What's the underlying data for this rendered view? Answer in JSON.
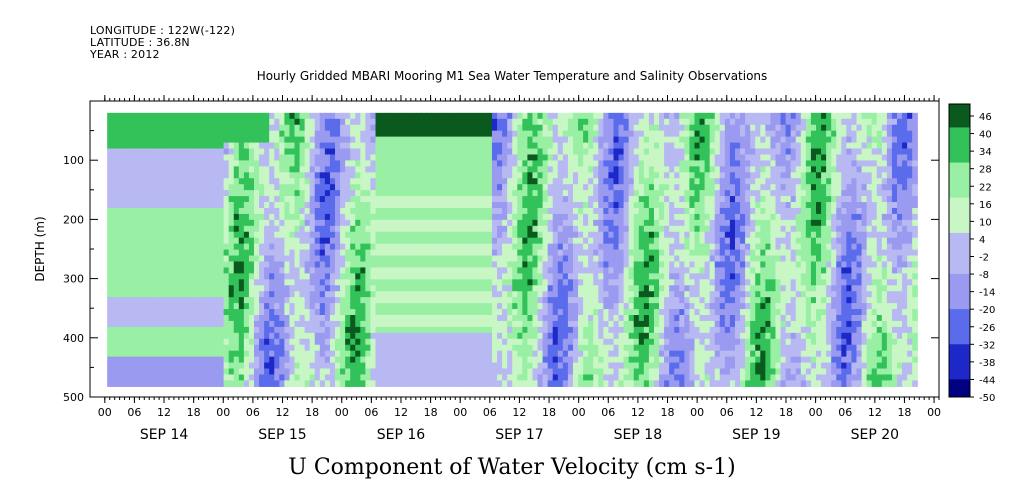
{
  "header": {
    "longitude": "LONGITUDE : 122W(-122)",
    "latitude": "LATITUDE : 36.8N",
    "year": "YEAR : 2012"
  },
  "chart_data": {
    "type": "heatmap",
    "title": "Hourly Gridded MBARI Mooring M1 Sea Water Temperature and Salinity Observations",
    "xlabel": "U Component of Water Velocity (cm s-1)",
    "ylabel": "DEPTH (m)",
    "ylim": [
      500,
      0
    ],
    "y_ticks": [
      100,
      200,
      300,
      400,
      500
    ],
    "hour_ticks": [
      "00",
      "06",
      "12",
      "18",
      "00",
      "06",
      "12",
      "18",
      "00",
      "06",
      "12",
      "18",
      "00",
      "06",
      "12",
      "18",
      "00",
      "06",
      "12",
      "18",
      "00",
      "06",
      "12",
      "18",
      "00",
      "06",
      "12",
      "18",
      "00",
      "06",
      "12",
      "18",
      "00"
    ],
    "day_labels": [
      "SEP 14",
      "SEP 15",
      "SEP 16",
      "SEP 17",
      "SEP 18",
      "SEP 19",
      "SEP 20"
    ],
    "colorbar": {
      "min": -50,
      "max": 50,
      "step": 2,
      "labels": [
        "46",
        "40",
        "34",
        "28",
        "22",
        "16",
        "10",
        "4",
        "-2",
        "-8",
        "-14",
        "-20",
        "-26",
        "-32",
        "-38",
        "-44",
        "-50"
      ]
    },
    "colors": {
      "dark_green": "#0a5a1f",
      "mid_green": "#33c25a",
      "light_green": "#99f0a5",
      "pale_green": "#c8f7c5",
      "pale_blue": "#b8b8f2",
      "light_blue": "#9a9af0",
      "mid_blue": "#5a6cec",
      "deep_blue": "#1e28c8",
      "navy": "#000080"
    }
  }
}
